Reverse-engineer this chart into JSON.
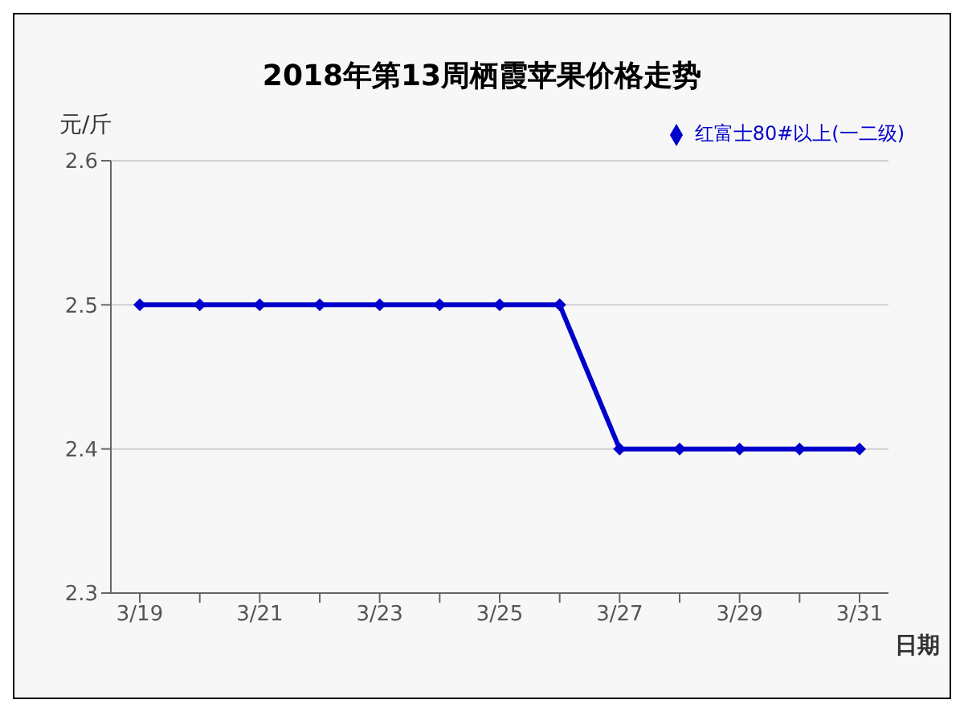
{
  "chart_data": {
    "type": "line",
    "title": "2018年第13周栖霞苹果价格走势",
    "xlabel": "日期",
    "ylabel": "元/斤",
    "categories": [
      "3/19",
      null,
      "3/21",
      null,
      "3/23",
      null,
      "3/25",
      null,
      "3/27",
      null,
      "3/29",
      null,
      "3/31"
    ],
    "series": [
      {
        "name": "红富士80#以上(一二级)",
        "color": "#0000cc",
        "values": [
          2.5,
          2.5,
          2.5,
          2.5,
          2.5,
          2.5,
          2.5,
          2.5,
          2.4,
          2.4,
          2.4,
          2.4,
          2.4
        ]
      }
    ],
    "ylim": [
      2.3,
      2.6
    ],
    "yticks": [
      2.3,
      2.4,
      2.5,
      2.6
    ],
    "grid": "y",
    "legend": "top right",
    "marker": "diamond",
    "line_style": "solid"
  }
}
